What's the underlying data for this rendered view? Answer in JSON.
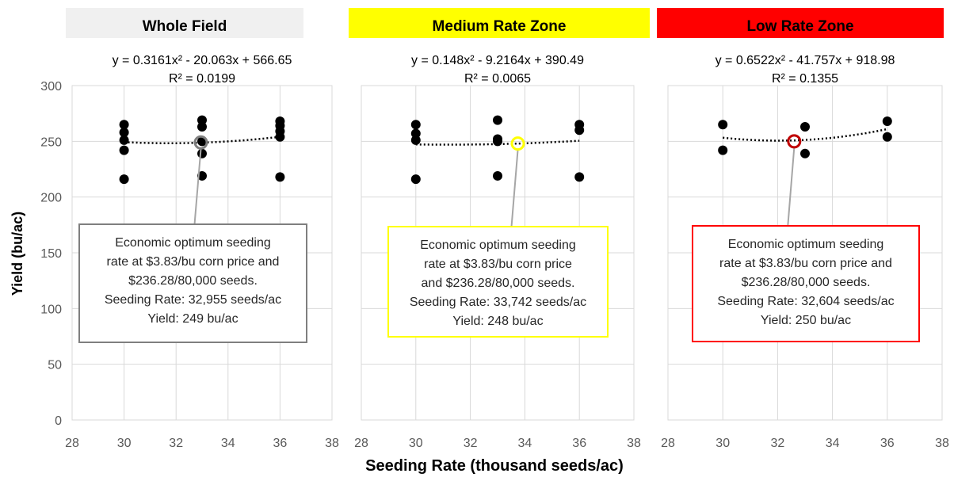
{
  "chart_data": [
    {
      "type": "scatter",
      "title": "Whole Field",
      "title_bg": "#f0f0f0",
      "box_color": "#7f7f7f",
      "marker_color": "#7f7f7f",
      "equation": "y = 0.3161x² - 20.063x + 566.65",
      "r2": "R² = 0.0199",
      "xlim": [
        28,
        38
      ],
      "ylim": [
        0,
        300
      ],
      "x_ticks": [
        28,
        30,
        32,
        34,
        36,
        38
      ],
      "y_ticks": [
        0,
        50,
        100,
        150,
        200,
        250,
        300
      ],
      "grid": true,
      "trend": {
        "a": 0.3161,
        "b": -20.063,
        "c": 566.65
      },
      "points": [
        {
          "x": 30,
          "y": 265
        },
        {
          "x": 30,
          "y": 258
        },
        {
          "x": 30,
          "y": 251
        },
        {
          "x": 30,
          "y": 242
        },
        {
          "x": 30,
          "y": 216
        },
        {
          "x": 33,
          "y": 269
        },
        {
          "x": 33,
          "y": 263
        },
        {
          "x": 33,
          "y": 250
        },
        {
          "x": 33,
          "y": 239
        },
        {
          "x": 33,
          "y": 219
        },
        {
          "x": 36,
          "y": 268
        },
        {
          "x": 36,
          "y": 264
        },
        {
          "x": 36,
          "y": 259
        },
        {
          "x": 36,
          "y": 254
        },
        {
          "x": 36,
          "y": 218
        }
      ],
      "optimum": {
        "x": 32.955,
        "y": 249
      },
      "annotation": [
        "Economic optimum seeding",
        "rate at $3.83/bu corn price and",
        "$236.28/80,000 seeds.",
        "Seeding Rate: 32,955 seeds/ac",
        "Yield: 249 bu/ac"
      ]
    },
    {
      "type": "scatter",
      "title": "Medium Rate Zone",
      "title_bg": "#ffff00",
      "box_color": "#ffff00",
      "marker_color": "#ffff00",
      "equation": "y = 0.148x² - 9.2164x + 390.49",
      "r2": "R² = 0.0065",
      "xlim": [
        28,
        38
      ],
      "ylim": [
        0,
        300
      ],
      "x_ticks": [
        28,
        30,
        32,
        34,
        36,
        38
      ],
      "y_ticks": [
        0,
        50,
        100,
        150,
        200,
        250,
        300
      ],
      "grid": true,
      "trend": {
        "a": 0.148,
        "b": -9.2164,
        "c": 390.49
      },
      "points": [
        {
          "x": 30,
          "y": 265
        },
        {
          "x": 30,
          "y": 257
        },
        {
          "x": 30,
          "y": 251
        },
        {
          "x": 30,
          "y": 216
        },
        {
          "x": 33,
          "y": 269
        },
        {
          "x": 33,
          "y": 252
        },
        {
          "x": 33,
          "y": 250
        },
        {
          "x": 33,
          "y": 219
        },
        {
          "x": 36,
          "y": 265
        },
        {
          "x": 36,
          "y": 260
        },
        {
          "x": 36,
          "y": 218
        }
      ],
      "optimum": {
        "x": 33.742,
        "y": 248
      },
      "annotation": [
        "Economic optimum seeding",
        "rate at $3.83/bu corn price",
        "and $236.28/80,000 seeds.",
        "Seeding Rate: 33,742 seeds/ac",
        "Yield: 248 bu/ac"
      ]
    },
    {
      "type": "scatter",
      "title": "Low Rate Zone",
      "title_bg": "#ff0000",
      "box_color": "#ff0000",
      "marker_color": "#c00000",
      "equation": "y = 0.6522x² - 41.757x + 918.98",
      "r2": "R² = 0.1355",
      "xlim": [
        28,
        38
      ],
      "ylim": [
        0,
        300
      ],
      "x_ticks": [
        28,
        30,
        32,
        34,
        36,
        38
      ],
      "y_ticks": [
        0,
        50,
        100,
        150,
        200,
        250,
        300
      ],
      "grid": true,
      "trend": {
        "a": 0.6522,
        "b": -41.757,
        "c": 918.98
      },
      "points": [
        {
          "x": 30,
          "y": 265
        },
        {
          "x": 30,
          "y": 242
        },
        {
          "x": 33,
          "y": 263
        },
        {
          "x": 33,
          "y": 239
        },
        {
          "x": 36,
          "y": 268
        },
        {
          "x": 36,
          "y": 254
        }
      ],
      "optimum": {
        "x": 32.604,
        "y": 250
      },
      "annotation": [
        "Economic optimum seeding",
        "rate at $3.83/bu corn price and",
        "$236.28/80,000 seeds.",
        "Seeding Rate: 32,604 seeds/ac",
        "Yield: 250 bu/ac"
      ]
    }
  ],
  "axes": {
    "ylabel": "Yield (bu/ac)",
    "xlabel": "Seeding Rate (thousand seeds/ac)"
  }
}
